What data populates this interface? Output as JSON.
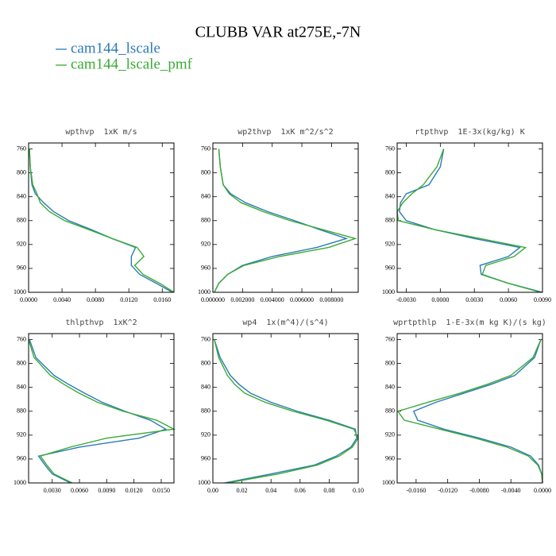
{
  "title": "CLUBB VAR at275E,-7N",
  "chart_data": [
    {
      "type": "line",
      "title": "wpthvp  1xK m/s",
      "y": [
        760,
        790,
        820,
        835,
        850,
        865,
        880,
        895,
        910,
        925,
        940,
        955,
        970,
        985,
        1000
      ],
      "ylim": [
        750,
        1000
      ],
      "y_reversed": true,
      "yticks": [
        760,
        800,
        840,
        880,
        920,
        960,
        1000
      ],
      "xlim": [
        0,
        0.0174
      ],
      "xticks": [
        {
          "value": 0,
          "label": "0.0000"
        },
        {
          "value": 0.004,
          "label": "0.0040"
        },
        {
          "value": 0.008,
          "label": "0.0080"
        },
        {
          "value": 0.012,
          "label": "0.0120"
        },
        {
          "value": 0.016,
          "label": "0.0160"
        }
      ],
      "series": [
        {
          "name": "cam144_lscale",
          "color": "#2c7bb6",
          "values": [
            0.0001,
            0.0002,
            0.0004,
            0.0008,
            0.0018,
            0.003,
            0.0048,
            0.0075,
            0.01,
            0.0128,
            0.0123,
            0.0123,
            0.0133,
            0.0153,
            0.0172
          ]
        },
        {
          "name": "cam144_lscale_pmf",
          "color": "#3aaa35",
          "values": [
            0.0001,
            0.0002,
            0.0005,
            0.001,
            0.0014,
            0.0025,
            0.0043,
            0.0072,
            0.01,
            0.013,
            0.0138,
            0.0127,
            0.0137,
            0.0157,
            0.0174
          ]
        }
      ]
    },
    {
      "type": "line",
      "title": "wp2thvp  1xK m^2/s^2",
      "y": [
        760,
        790,
        820,
        835,
        850,
        865,
        880,
        895,
        910,
        925,
        940,
        955,
        970,
        985,
        1000
      ],
      "ylim": [
        750,
        1000
      ],
      "y_reversed": true,
      "yticks": [
        760,
        800,
        840,
        880,
        920,
        960,
        1000
      ],
      "xlim": [
        0,
        0.0098
      ],
      "xticks": [
        {
          "value": 0,
          "label": "0.000000"
        },
        {
          "value": 0.002,
          "label": "0.002000"
        },
        {
          "value": 0.004,
          "label": "0.004000"
        },
        {
          "value": 0.006,
          "label": "0.006000"
        },
        {
          "value": 0.008,
          "label": "0.008000"
        }
      ],
      "series": [
        {
          "name": "cam144_lscale",
          "color": "#2c7bb6",
          "values": [
            0.0004,
            0.0005,
            0.0007,
            0.0012,
            0.0022,
            0.0037,
            0.0055,
            0.0072,
            0.009,
            0.007,
            0.004,
            0.002,
            0.001,
            0.0004,
            0.0001
          ]
        },
        {
          "name": "cam144_lscale_pmf",
          "color": "#3aaa35",
          "values": [
            0.0004,
            0.0005,
            0.0007,
            0.0011,
            0.0019,
            0.0034,
            0.0052,
            0.0074,
            0.0096,
            0.0078,
            0.0045,
            0.0021,
            0.001,
            0.0004,
            0.0001
          ]
        }
      ]
    },
    {
      "type": "line",
      "title": "rtpthvp  1E-3x(kg/kg) K",
      "y": [
        760,
        790,
        820,
        835,
        850,
        865,
        880,
        895,
        910,
        925,
        940,
        955,
        970,
        985,
        1000
      ],
      "ylim": [
        750,
        1000
      ],
      "y_reversed": true,
      "yticks": [
        760,
        800,
        840,
        880,
        920,
        960,
        1000
      ],
      "xlim": [
        -0.0038,
        0.009
      ],
      "xticks": [
        {
          "value": -0.003,
          "label": "-0.0030"
        },
        {
          "value": 0,
          "label": "0.0000"
        },
        {
          "value": 0.003,
          "label": "0.0030"
        },
        {
          "value": 0.006,
          "label": "0.0060"
        },
        {
          "value": 0.009,
          "label": "0.0090"
        }
      ],
      "series": [
        {
          "name": "cam144_lscale",
          "color": "#2c7bb6",
          "values": [
            0.0003,
            0.0,
            -0.001,
            -0.003,
            -0.0035,
            -0.0036,
            -0.003,
            -0.0005,
            0.003,
            0.007,
            0.006,
            0.0035,
            0.0036,
            0.006,
            0.009
          ]
        },
        {
          "name": "cam144_lscale_pmf",
          "color": "#3aaa35",
          "values": [
            0.0003,
            -0.0003,
            -0.0015,
            -0.0025,
            -0.0033,
            -0.0038,
            -0.0037,
            -0.0005,
            0.0035,
            0.0075,
            0.0065,
            0.004,
            0.0037,
            0.006,
            0.0088
          ]
        }
      ]
    },
    {
      "type": "line",
      "title": "thlpthvp  1xK^2",
      "y": [
        760,
        790,
        820,
        835,
        850,
        865,
        880,
        895,
        910,
        925,
        940,
        955,
        970,
        985,
        1000
      ],
      "ylim": [
        750,
        1000
      ],
      "y_reversed": true,
      "yticks": [
        760,
        800,
        840,
        880,
        920,
        960,
        1000
      ],
      "xlim": [
        0.0004,
        0.0164
      ],
      "xticks": [
        {
          "value": 0.003,
          "label": "0.0030"
        },
        {
          "value": 0.006,
          "label": "0.0060"
        },
        {
          "value": 0.009,
          "label": "0.0090"
        },
        {
          "value": 0.012,
          "label": "0.0120"
        },
        {
          "value": 0.015,
          "label": "0.0150"
        }
      ],
      "series": [
        {
          "name": "cam144_lscale",
          "color": "#2c7bb6",
          "values": [
            0.0005,
            0.0012,
            0.0032,
            0.0048,
            0.0066,
            0.0085,
            0.011,
            0.0138,
            0.0155,
            0.0126,
            0.006,
            0.0015,
            0.0022,
            0.003,
            0.005
          ]
        },
        {
          "name": "cam144_lscale_pmf",
          "color": "#3aaa35",
          "values": [
            0.0004,
            0.001,
            0.0028,
            0.0043,
            0.006,
            0.008,
            0.0108,
            0.0145,
            0.0164,
            0.009,
            0.005,
            0.0017,
            0.0024,
            0.0032,
            0.0052
          ]
        }
      ]
    },
    {
      "type": "line",
      "title": "wp4  1x(m^4)/(s^4)",
      "y": [
        760,
        790,
        820,
        835,
        850,
        865,
        880,
        895,
        910,
        925,
        940,
        955,
        970,
        985,
        1000
      ],
      "ylim": [
        750,
        1000
      ],
      "y_reversed": true,
      "yticks": [
        760,
        800,
        840,
        880,
        920,
        960,
        1000
      ],
      "xlim": [
        0,
        0.1
      ],
      "xticks": [
        {
          "value": 0,
          "label": "0.00"
        },
        {
          "value": 0.02,
          "label": "0.02"
        },
        {
          "value": 0.04,
          "label": "0.04"
        },
        {
          "value": 0.06,
          "label": "0.06"
        },
        {
          "value": 0.08,
          "label": "0.08"
        },
        {
          "value": 0.1,
          "label": "0.10"
        }
      ],
      "series": [
        {
          "name": "cam144_lscale",
          "color": "#2c7bb6",
          "values": [
            0.001,
            0.005,
            0.012,
            0.018,
            0.026,
            0.04,
            0.058,
            0.08,
            0.098,
            0.099,
            0.095,
            0.085,
            0.07,
            0.04,
            0.008
          ]
        },
        {
          "name": "cam144_lscale_pmf",
          "color": "#3aaa35",
          "values": [
            0.001,
            0.004,
            0.01,
            0.015,
            0.022,
            0.036,
            0.055,
            0.078,
            0.097,
            0.1,
            0.096,
            0.087,
            0.072,
            0.045,
            0.01
          ]
        }
      ]
    },
    {
      "type": "line",
      "title": "wprtpthlp  1-E-3x(m kg K)/(s kg)",
      "y": [
        760,
        790,
        820,
        835,
        850,
        865,
        880,
        895,
        910,
        925,
        940,
        955,
        970,
        985,
        1000
      ],
      "ylim": [
        750,
        1000
      ],
      "y_reversed": true,
      "yticks": [
        760,
        800,
        840,
        880,
        920,
        960,
        1000
      ],
      "xlim": [
        -0.0184,
        0
      ],
      "xticks": [
        {
          "value": -0.016,
          "label": "-0.0160"
        },
        {
          "value": -0.012,
          "label": "-0.0120"
        },
        {
          "value": -0.008,
          "label": "-0.0080"
        },
        {
          "value": -0.004,
          "label": "-0.0040"
        },
        {
          "value": 0,
          "label": "0.0000"
        }
      ],
      "series": [
        {
          "name": "cam144_lscale",
          "color": "#2c7bb6",
          "values": [
            -0.0002,
            -0.001,
            -0.0035,
            -0.0065,
            -0.01,
            -0.0135,
            -0.0163,
            -0.0158,
            -0.0125,
            -0.008,
            -0.004,
            -0.0015,
            -0.0005,
            -0.0001,
            0
          ]
        },
        {
          "name": "cam144_lscale_pmf",
          "color": "#3aaa35",
          "values": [
            -0.0002,
            -0.0012,
            -0.004,
            -0.007,
            -0.0105,
            -0.0145,
            -0.0183,
            -0.0175,
            -0.013,
            -0.0085,
            -0.0045,
            -0.0018,
            -0.0006,
            -0.0001,
            0
          ]
        }
      ]
    }
  ]
}
